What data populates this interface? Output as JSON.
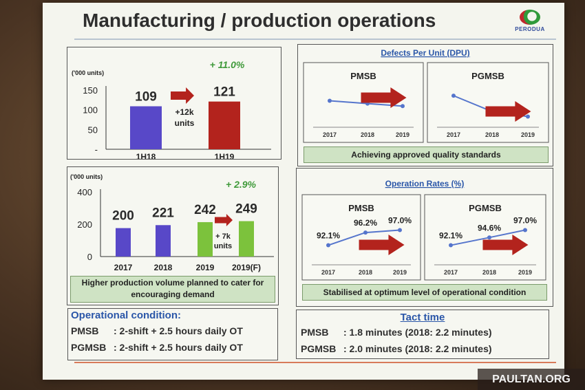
{
  "slide": {
    "title": "Manufacturing / production operations",
    "logo_text": "PERODUA",
    "watermark": "PAULTAN.ORG"
  },
  "colors": {
    "blue": "#5848c8",
    "red": "#b3231d",
    "green": "#7cc23c",
    "trend_line": "#5575cc",
    "arrow": "#b3231d",
    "growth_text": "#3f9a3a",
    "heading_blue": "#2a56a8"
  },
  "chart_data": [
    {
      "type": "bar",
      "id": "half_year_volume",
      "unit": "('000 units)",
      "categories": [
        "1H18",
        "1H19"
      ],
      "values": [
        109,
        121
      ],
      "bar_colors": [
        "blue",
        "red"
      ],
      "y_ticks": [
        "150",
        "100",
        "50",
        "-"
      ],
      "ylim": [
        0,
        150
      ],
      "growth_label": "+ 11.0%",
      "arrow_note": [
        "+12k",
        "units"
      ]
    },
    {
      "type": "bar",
      "id": "annual_volume",
      "unit": "('000 units)",
      "categories": [
        "2017",
        "2018",
        "2019",
        "2019(F)"
      ],
      "values": [
        200,
        221,
        242,
        249
      ],
      "bar_colors": [
        "blue",
        "blue",
        "green",
        "green"
      ],
      "y_ticks": [
        "400",
        "200",
        "0"
      ],
      "ylim": [
        0,
        400
      ],
      "growth_label": "+ 2.9%",
      "arrow_note": [
        "+ 7k",
        "units"
      ],
      "caption": "Higher production volume planned to cater for encouraging demand"
    },
    {
      "type": "line",
      "id": "dpu",
      "title": "Defects Per Unit (DPU)",
      "x": [
        "2017",
        "2018",
        "2019"
      ],
      "series": [
        {
          "name": "PMSB",
          "values": [
            0.62,
            0.53,
            0.45
          ]
        },
        {
          "name": "PGMSB",
          "values": [
            0.78,
            0.28,
            0.12
          ]
        }
      ],
      "note": "relative levels only; y axis unlabeled",
      "caption": "Achieving approved quality standards"
    },
    {
      "type": "line",
      "id": "operation_rates",
      "title": "Operation Rates (%)",
      "x": [
        "2017",
        "2018",
        "2019"
      ],
      "series": [
        {
          "name": "PMSB",
          "values": [
            92.1,
            96.2,
            97.0
          ],
          "labels": [
            "92.1%",
            "96.2%",
            "97.0%"
          ]
        },
        {
          "name": "PGMSB",
          "values": [
            92.1,
            94.6,
            97.0
          ],
          "labels": [
            "92.1%",
            "94.6%",
            "97.0%"
          ]
        }
      ],
      "caption": "Stabilised at optimum level of operational condition"
    }
  ],
  "operational": {
    "heading": "Operational condition:",
    "rows": [
      {
        "label": "PMSB",
        "text": ": 2-shift + 2.5 hours daily OT"
      },
      {
        "label": "PGMSB",
        "text": ": 2-shift + 2.5 hours daily OT"
      }
    ]
  },
  "tact": {
    "heading": "Tact time",
    "rows": [
      {
        "label": "PMSB",
        "text": ": 1.8 minutes (2018: 2.2 minutes)"
      },
      {
        "label": "PGMSB",
        "text": ": 2.0 minutes (2018: 2.2 minutes)"
      }
    ]
  }
}
